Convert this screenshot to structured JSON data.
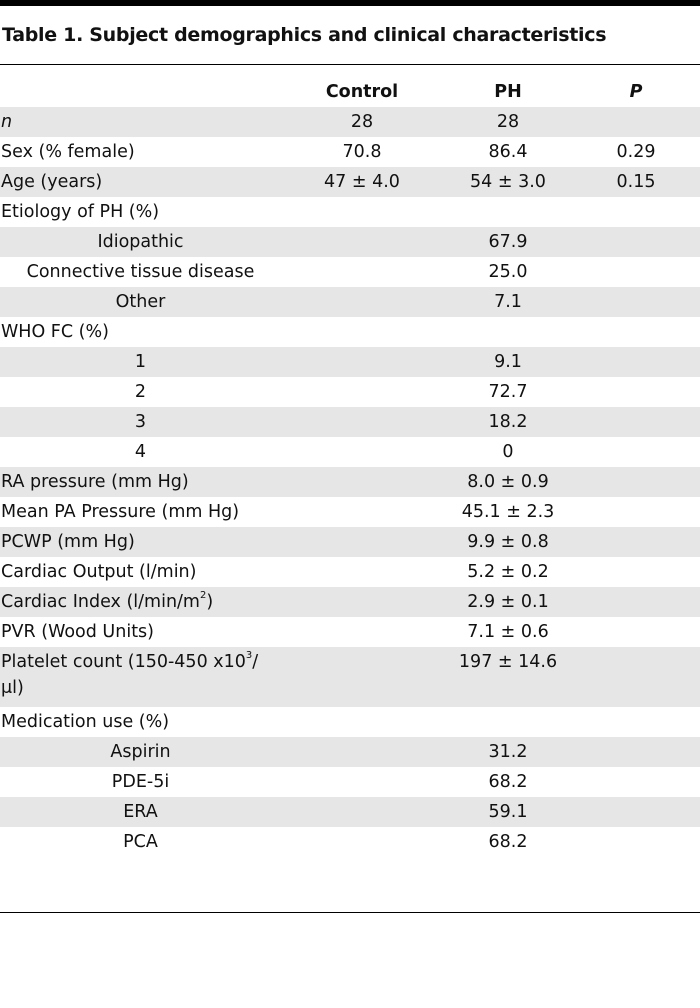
{
  "title": "Table 1. Subject demographics and clinical characteristics",
  "columns": {
    "label": "",
    "control": "Control",
    "ph": "PH",
    "p": "P"
  },
  "rows": [
    {
      "label": "n",
      "control": "28",
      "ph": "28",
      "p": ""
    },
    {
      "label": "Sex (% female)",
      "control": "70.8",
      "ph": "86.4",
      "p": "0.29"
    },
    {
      "label": "Age (years)",
      "control": "47 ± 4.0",
      "ph": "54 ± 3.0",
      "p": "0.15"
    },
    {
      "label": "Etiology of PH (%)",
      "control": "",
      "ph": "",
      "p": ""
    },
    {
      "label": "Idiopathic",
      "control": "",
      "ph": "67.9",
      "p": ""
    },
    {
      "label": "Connective tissue disease",
      "control": "",
      "ph": "25.0",
      "p": ""
    },
    {
      "label": "Other",
      "control": "",
      "ph": "7.1",
      "p": ""
    },
    {
      "label": "WHO FC (%)",
      "control": "",
      "ph": "",
      "p": ""
    },
    {
      "label": "1",
      "control": "",
      "ph": "9.1",
      "p": ""
    },
    {
      "label": "2",
      "control": "",
      "ph": "72.7",
      "p": ""
    },
    {
      "label": "3",
      "control": "",
      "ph": "18.2",
      "p": ""
    },
    {
      "label": "4",
      "control": "",
      "ph": "0",
      "p": ""
    },
    {
      "label": "RA pressure (mm Hg)",
      "control": "",
      "ph": "8.0 ± 0.9",
      "p": ""
    },
    {
      "label": "Mean PA Pressure (mm Hg)",
      "control": "",
      "ph": "45.1 ± 2.3",
      "p": ""
    },
    {
      "label": "PCWP (mm Hg)",
      "control": "",
      "ph": "9.9 ± 0.8",
      "p": ""
    },
    {
      "label": "Cardiac Output (l/min)",
      "control": "",
      "ph": "5.2 ± 0.2",
      "p": ""
    },
    {
      "label_main": "Cardiac Index (l/min/m",
      "label_sup": "2",
      "label_tail": ")",
      "control": "",
      "ph": "2.9 ± 0.1",
      "p": ""
    },
    {
      "label": "PVR (Wood Units)",
      "control": "",
      "ph": "7.1 ± 0.6",
      "p": ""
    },
    {
      "label_main": "Platelet count (150-450 x10",
      "label_sup": "3",
      "label_tail": "/ μl)",
      "control": "",
      "ph": "197 ± 14.6",
      "p": ""
    },
    {
      "label": "Medication use (%)",
      "control": "",
      "ph": "",
      "p": ""
    },
    {
      "label": "Aspirin",
      "control": "",
      "ph": "31.2",
      "p": ""
    },
    {
      "label": "PDE-5i",
      "control": "",
      "ph": "68.2",
      "p": ""
    },
    {
      "label": "ERA",
      "control": "",
      "ph": "59.1",
      "p": ""
    },
    {
      "label": "PCA",
      "control": "",
      "ph": "68.2",
      "p": ""
    }
  ],
  "colors": {
    "stripe": "#e6e6e6",
    "text": "#111111",
    "rule": "#000000"
  }
}
